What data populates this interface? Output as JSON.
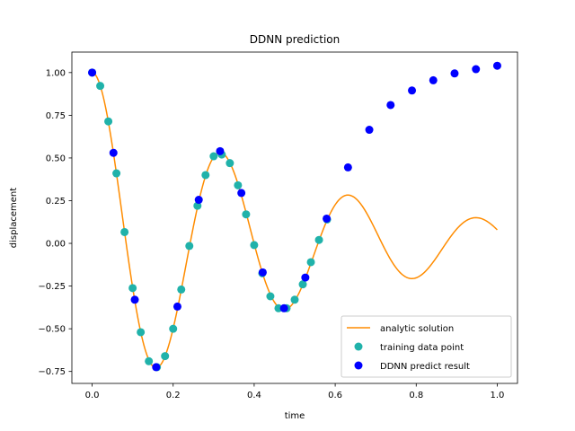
{
  "chart_data": {
    "type": "scatter",
    "title": "DDNN prediction",
    "xlabel": "time",
    "ylabel": "displacement",
    "xlim": [
      -0.05,
      1.05
    ],
    "ylim": [
      -0.82,
      1.12
    ],
    "xticks": [
      0.0,
      0.2,
      0.4,
      0.6,
      0.8,
      1.0
    ],
    "xtick_labels": [
      "0.0",
      "0.2",
      "0.4",
      "0.6",
      "0.8",
      "1.0"
    ],
    "yticks": [
      -0.75,
      -0.5,
      -0.25,
      0.0,
      0.25,
      0.5,
      0.75,
      1.0
    ],
    "ytick_labels": [
      "−0.75",
      "−0.50",
      "−0.25",
      "0.00",
      "0.25",
      "0.50",
      "0.75",
      "1.00"
    ],
    "grid": false,
    "legend_placement": "lower right",
    "series": [
      {
        "name": "analytic solution",
        "kind": "line",
        "color": "#ff8c00",
        "model": {
          "amplitude": 1.0,
          "damping": 2.0,
          "omega": 19.8997,
          "phase": -0.1002
        },
        "x": [
          0.0,
          0.02,
          0.04,
          0.06,
          0.08,
          0.1,
          0.12,
          0.14,
          0.16,
          0.18,
          0.2,
          0.22,
          0.24,
          0.26,
          0.28,
          0.3,
          0.32,
          0.34,
          0.36,
          0.38,
          0.4,
          0.42,
          0.44,
          0.46,
          0.48,
          0.5,
          0.52,
          0.54,
          0.56,
          0.58,
          0.6,
          0.62,
          0.64,
          0.66,
          0.68,
          0.7,
          0.72,
          0.74,
          0.76,
          0.78,
          0.8,
          0.82,
          0.84,
          0.86,
          0.88,
          0.9,
          0.92,
          0.94,
          0.96,
          0.98,
          1.0
        ],
        "y": [
          1.0,
          0.922,
          0.714,
          0.418,
          0.086,
          -0.23,
          -0.48,
          -0.634,
          -0.675,
          -0.606,
          -0.448,
          -0.235,
          -0.008,
          0.196,
          0.349,
          0.434,
          0.445,
          0.388,
          0.279,
          0.14,
          -0.004,
          -0.128,
          -0.216,
          -0.259,
          -0.255,
          -0.21,
          -0.135,
          -0.046,
          0.041,
          0.112,
          0.157,
          0.172,
          0.158,
          0.119,
          0.064,
          0.004,
          -0.053,
          -0.096,
          -0.121,
          -0.126,
          -0.111,
          -0.08,
          -0.039,
          0.005,
          0.045,
          0.075,
          0.091,
          0.094,
          0.083,
          0.061,
          0.032
        ]
      },
      {
        "name": "training data point",
        "kind": "scatter",
        "color": "#20b2aa",
        "x": [
          0.0,
          0.02,
          0.04,
          0.06,
          0.08,
          0.1,
          0.12,
          0.14,
          0.16,
          0.18,
          0.2,
          0.22,
          0.24,
          0.26,
          0.28,
          0.3,
          0.32,
          0.34,
          0.36,
          0.38,
          0.4,
          0.42,
          0.44,
          0.46,
          0.48,
          0.5,
          0.52,
          0.54,
          0.56,
          0.58
        ],
        "y": [
          1.0,
          0.922,
          0.714,
          0.41,
          0.066,
          -0.262,
          -0.52,
          -0.69,
          -0.725,
          -0.66,
          -0.5,
          -0.27,
          -0.015,
          0.22,
          0.4,
          0.51,
          0.52,
          0.47,
          0.34,
          0.17,
          -0.01,
          -0.175,
          -0.31,
          -0.38,
          -0.38,
          -0.33,
          -0.24,
          -0.11,
          0.02,
          0.14
        ]
      },
      {
        "name": "DDNN predict result",
        "kind": "scatter",
        "color": "#0000ff",
        "x": [
          0.0,
          0.0526,
          0.1053,
          0.1579,
          0.2105,
          0.2632,
          0.3158,
          0.3684,
          0.4211,
          0.4737,
          0.5263,
          0.5789,
          0.6316,
          0.6842,
          0.7368,
          0.7895,
          0.8421,
          0.8947,
          0.9474,
          1.0
        ],
        "y": [
          1.0,
          0.53,
          -0.33,
          -0.725,
          -0.37,
          0.255,
          0.54,
          0.295,
          -0.17,
          -0.38,
          -0.2,
          0.145,
          0.445,
          0.665,
          0.81,
          0.895,
          0.955,
          0.995,
          1.02,
          1.04
        ]
      }
    ]
  }
}
